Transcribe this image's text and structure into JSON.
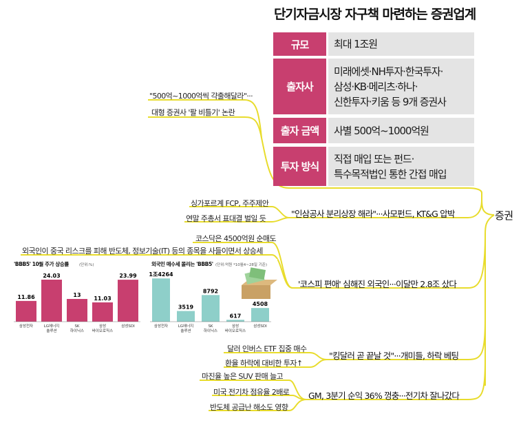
{
  "colors": {
    "accent": "#c83f6f",
    "cell_bg": "#e4e4e4",
    "line": "#e8dc2c",
    "teal": "#8ecfc9"
  },
  "table": {
    "title": "단기자금시장 자구책 마련하는 증권업계",
    "rows": [
      {
        "key": "규모",
        "value": "최대 1조원"
      },
      {
        "key": "출자사",
        "value": "미래에셋·NH투자·한국투자·\n삼성·KB·메리츠·하나·\n신한투자·키움 등 9개 증권사"
      },
      {
        "key": "출자 금액",
        "value": "사별 500억~1000억원"
      },
      {
        "key": "투자 방식",
        "value": "직접 매입 또는 펀드·\n특수목적법인 통한 간접 매입"
      }
    ]
  },
  "root": "증권",
  "branches": {
    "b1": {
      "line1": "\"500억~1000억씩 갹출해달라\"···",
      "line2": "대형 증권사 '팔 비틀기' 논란"
    },
    "b2": {
      "main": "\"인삼공사 분리상장 해라\"···사모펀드, KT&G 압박",
      "sub1": "싱가포르계 FCP, 주주제안",
      "sub2": "연말 주총서 표대결 벌일 듯"
    },
    "b3": {
      "main": "'코스피 편애' 심해진 외국인···이달만 2.8조 샀다",
      "sub1": "코스닥은 4500억원 순매도",
      "sub2": "외국인이 중국 리스크를 피해 반도체, 정보기술(IT) 등의 종목을 사들이면서 상승세"
    },
    "b4": {
      "main": "\"킹달러 곧 끝날 것\"···개미들, 하락 베팅",
      "sub1": "달러 인버스 ETF 집중 매수",
      "sub2": "환율 하락에 대비한 투자↑"
    },
    "b5": {
      "main": "GM, 3분기 순익 36% 껑충···전기차 잘나갔다",
      "sub1": "마진율 높은 SUV 판매 늘고",
      "sub2": "미국 전기차 점유율 2배로",
      "sub3": "반도체 공급난 해소도 영향"
    }
  },
  "chart_data": [
    {
      "type": "bar",
      "title": "'BBB5' 10월 주가 상승률",
      "unit": "(단위:%)",
      "categories": [
        "삼성전자",
        "LG에너지\n솔루션",
        "SK\n하이닉스",
        "삼성\n바이오로직스",
        "삼성SDI"
      ],
      "values": [
        11.86,
        24.03,
        13,
        11.03,
        23.99
      ],
      "value_labels": [
        "11.86",
        "24.03",
        "13",
        "11.03",
        "23.99"
      ],
      "ylim": [
        0,
        26
      ],
      "color": "#c83f6f"
    },
    {
      "type": "bar",
      "title": "외국인 매수세 몰리는 'BBB5'",
      "unit": "(단위:억원 *10월4~28일 기준)",
      "categories": [
        "삼성전자",
        "LG에너지\n솔루션",
        "SK\n하이닉스",
        "삼성\n바이오로직스",
        "삼성SDI"
      ],
      "values": [
        14264,
        3519,
        8792,
        617,
        4508
      ],
      "value_labels": [
        "1조4264",
        "3519",
        "8792",
        "617",
        "4508"
      ],
      "ylim": [
        0,
        15000
      ],
      "color": "#8ecfc9"
    }
  ]
}
